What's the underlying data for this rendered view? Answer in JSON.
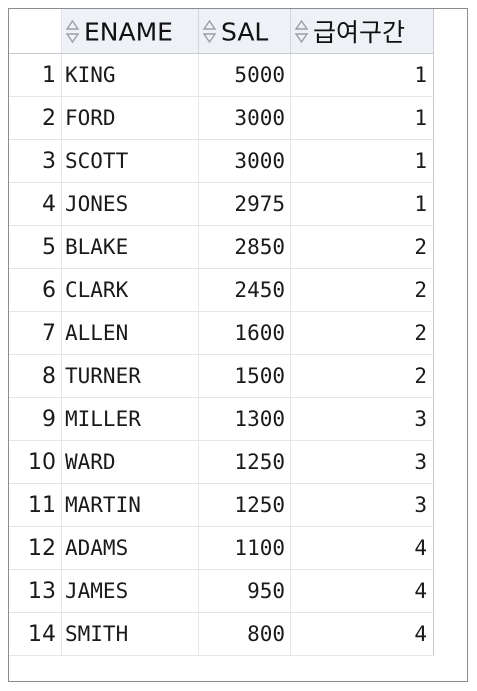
{
  "grid": {
    "columns": [
      "ENAME",
      "SAL",
      "급여구간"
    ],
    "rows": [
      {
        "num": "1",
        "ename": "KING",
        "sal": "5000",
        "grade": "1"
      },
      {
        "num": "2",
        "ename": "FORD",
        "sal": "3000",
        "grade": "1"
      },
      {
        "num": "3",
        "ename": "SCOTT",
        "sal": "3000",
        "grade": "1"
      },
      {
        "num": "4",
        "ename": "JONES",
        "sal": "2975",
        "grade": "1"
      },
      {
        "num": "5",
        "ename": "BLAKE",
        "sal": "2850",
        "grade": "2"
      },
      {
        "num": "6",
        "ename": "CLARK",
        "sal": "2450",
        "grade": "2"
      },
      {
        "num": "7",
        "ename": "ALLEN",
        "sal": "1600",
        "grade": "2"
      },
      {
        "num": "8",
        "ename": "TURNER",
        "sal": "1500",
        "grade": "2"
      },
      {
        "num": "9",
        "ename": "MILLER",
        "sal": "1300",
        "grade": "3"
      },
      {
        "num": "10",
        "ename": "WARD",
        "sal": "1250",
        "grade": "3"
      },
      {
        "num": "11",
        "ename": "MARTIN",
        "sal": "1250",
        "grade": "3"
      },
      {
        "num": "12",
        "ename": "ADAMS",
        "sal": "1100",
        "grade": "4"
      },
      {
        "num": "13",
        "ename": "JAMES",
        "sal": "950",
        "grade": "4"
      },
      {
        "num": "14",
        "ename": "SMITH",
        "sal": "800",
        "grade": "4"
      }
    ]
  }
}
